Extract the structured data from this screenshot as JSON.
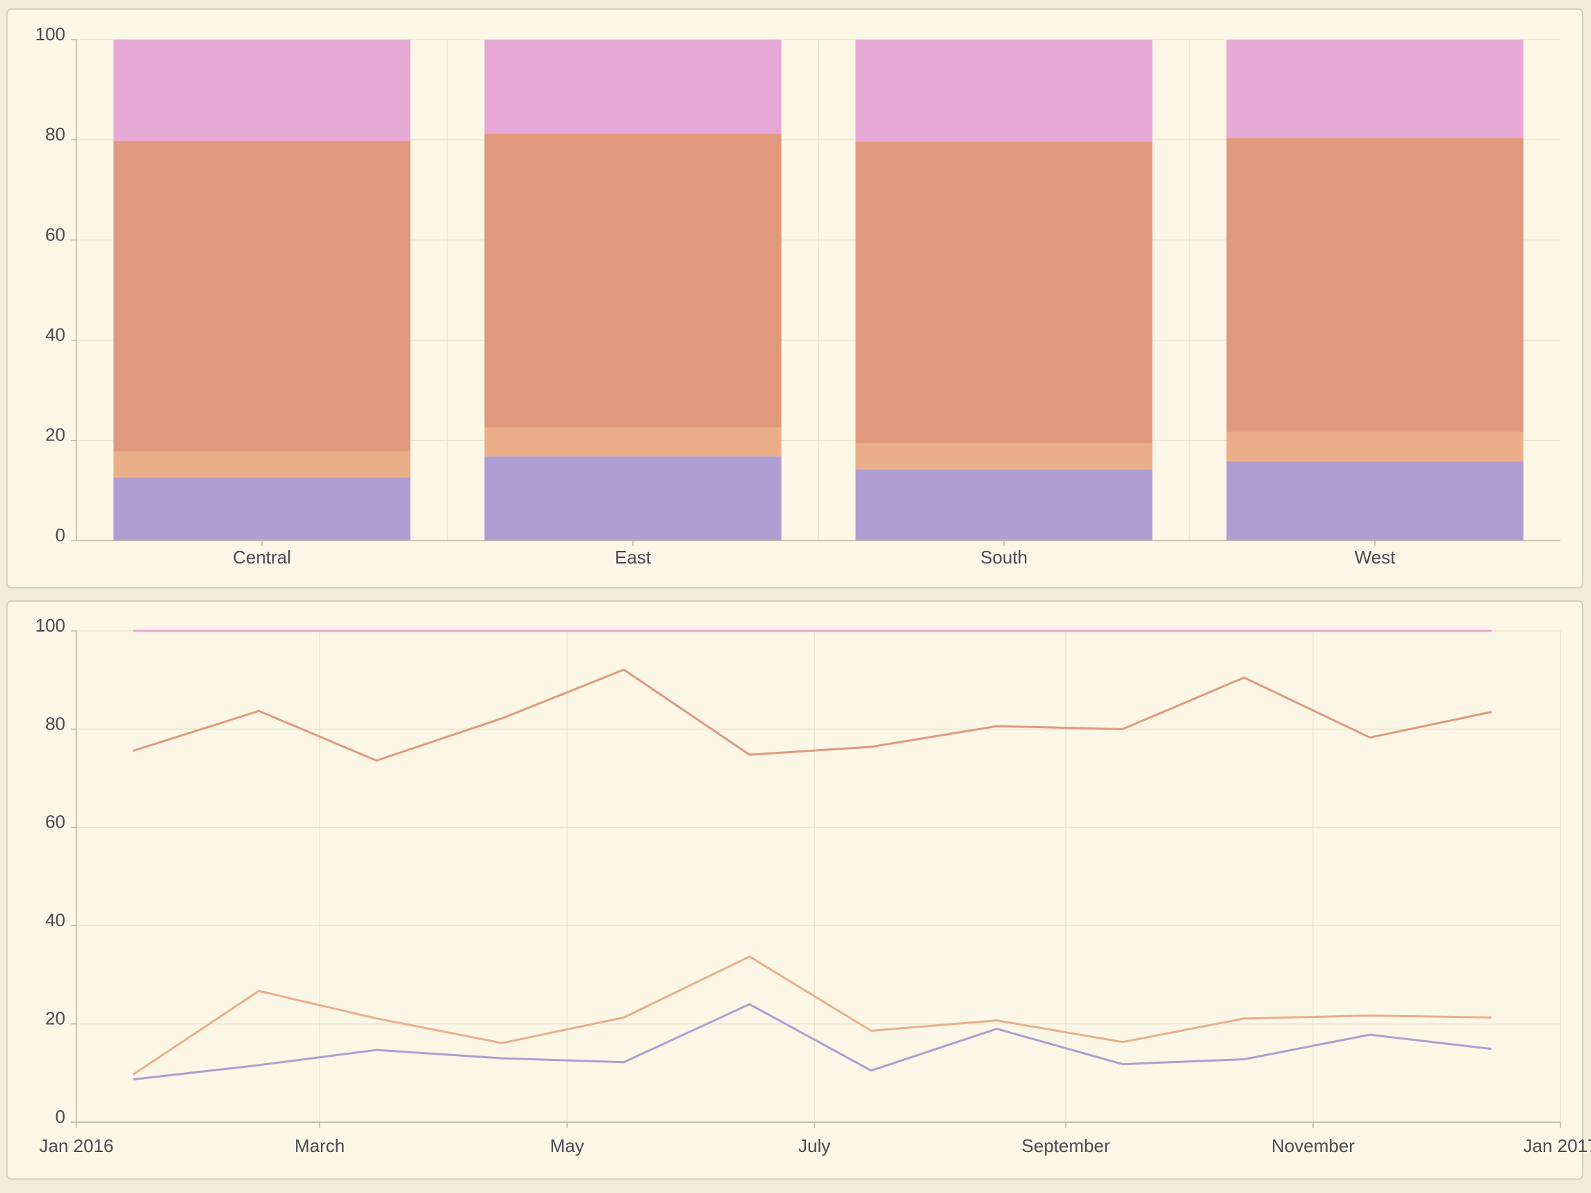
{
  "chart_data": [
    {
      "type": "bar",
      "stacked": true,
      "categories": [
        "Central",
        "East",
        "South",
        "West"
      ],
      "series": [
        {
          "color": "#b09dd2",
          "values": [
            12.6,
            16.8,
            14.2,
            15.8
          ]
        },
        {
          "color": "#eaae88",
          "values": [
            5.2,
            5.7,
            5.2,
            5.9
          ]
        },
        {
          "color": "#e0997c",
          "values": [
            62.0,
            58.7,
            60.2,
            58.7
          ]
        },
        {
          "color": "#e6a8d4",
          "values": [
            20.2,
            18.8,
            20.4,
            19.6
          ]
        }
      ],
      "ylim": [
        0,
        100
      ],
      "yticks": [
        0,
        20,
        40,
        60,
        80,
        100
      ],
      "grid": true
    },
    {
      "type": "line",
      "stacked": true,
      "x": [
        "2016-01",
        "2016-02",
        "2016-03",
        "2016-04",
        "2016-05",
        "2016-06",
        "2016-07",
        "2016-08",
        "2016-09",
        "2016-10",
        "2016-11",
        "2016-12"
      ],
      "series": [
        {
          "color": "#b09dd2",
          "values": [
            8.7,
            11.6,
            14.7,
            13.0,
            12.2,
            24.0,
            10.5,
            19.0,
            11.8,
            12.8,
            17.8,
            14.9
          ]
        },
        {
          "color": "#eaae88",
          "values": [
            1.0,
            15.1,
            6.4,
            3.1,
            9.1,
            9.7,
            8.1,
            1.7,
            4.5,
            8.3,
            3.9,
            6.4
          ]
        },
        {
          "color": "#e0997c",
          "values": [
            65.9,
            57.0,
            52.5,
            66.1,
            70.8,
            41.1,
            57.8,
            59.9,
            63.7,
            69.4,
            56.6,
            62.2
          ]
        },
        {
          "color": "#e6a8d4",
          "values": [
            24.4,
            16.3,
            26.4,
            17.8,
            7.9,
            25.2,
            23.6,
            19.4,
            20.0,
            9.5,
            21.7,
            16.5
          ]
        }
      ],
      "xlim": [
        "2016-01",
        "2017-01"
      ],
      "xticks": [
        {
          "value": "2016-01",
          "label": "Jan 2016"
        },
        {
          "value": "2016-03",
          "label": "March"
        },
        {
          "value": "2016-05",
          "label": "May"
        },
        {
          "value": "2016-07",
          "label": "July"
        },
        {
          "value": "2016-09",
          "label": "September"
        },
        {
          "value": "2016-11",
          "label": "November"
        },
        {
          "value": "2017-01",
          "label": "Jan 2017"
        }
      ],
      "ylim": [
        0,
        100
      ],
      "yticks": [
        0,
        20,
        40,
        60,
        80,
        100
      ],
      "grid": true
    }
  ]
}
